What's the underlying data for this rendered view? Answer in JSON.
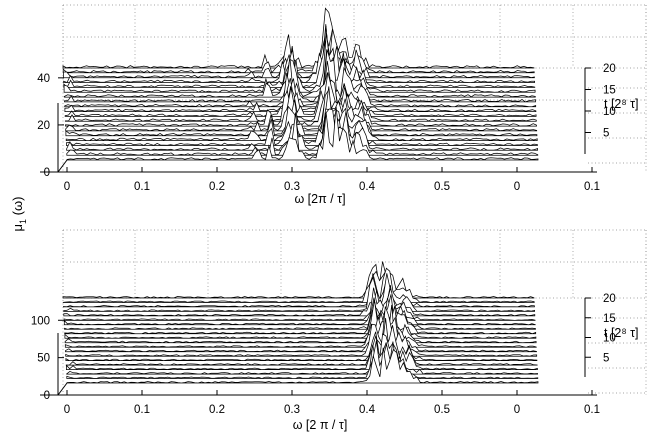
{
  "shared_ylabel": "μ1 (ω)",
  "shared_ylabel_base": "μ",
  "shared_ylabel_sub": "1",
  "shared_ylabel_arg": " (ω)",
  "chart_data": [
    {
      "type": "waterfall",
      "title": "",
      "xlabel": "ω [2π / τ]",
      "x_ticks": [
        "0",
        "0.1",
        "0.2",
        "0.3",
        "0.4",
        "0.5",
        "0",
        "0.1"
      ],
      "z_ticks": [
        "0",
        "20",
        "40"
      ],
      "t_label": "t [2⁸ τ]",
      "t_ticks": [
        "5",
        "10",
        "15",
        "20"
      ],
      "xlim": [
        0,
        0.5
      ],
      "zlim": [
        0,
        50
      ],
      "tlim": [
        0,
        20
      ],
      "grid": true,
      "series_count": 20,
      "peak_centers": [
        0.3,
        0.35,
        0.37,
        0.39
      ],
      "peak_heights": [
        35,
        48,
        30,
        20
      ],
      "peak_widths": [
        0.008,
        0.01,
        0.008,
        0.01
      ],
      "noise": 2,
      "spike_positions": [
        0.27,
        0.25
      ],
      "spike_heights": [
        14,
        8
      ]
    },
    {
      "type": "waterfall",
      "title": "",
      "xlabel": "ω [2 π / τ]",
      "x_ticks": [
        "0",
        "0.1",
        "0.2",
        "0.3",
        "0.4",
        "0.5",
        "0",
        "0.1"
      ],
      "z_ticks": [
        "0",
        "50",
        "100"
      ],
      "t_label": "t [2⁸ τ]",
      "t_ticks": [
        "5",
        "10",
        "15",
        "20"
      ],
      "xlim": [
        0,
        0.5
      ],
      "zlim": [
        0,
        150
      ],
      "tlim": [
        0,
        20
      ],
      "grid": true,
      "series_count": 20,
      "peak_centers": [
        0.41,
        0.43,
        0.45
      ],
      "peak_heights": [
        70,
        90,
        40
      ],
      "peak_widths": [
        0.006,
        0.008,
        0.01
      ],
      "noise": 3,
      "spike_positions": [
        0.42
      ],
      "spike_heights": [
        30
      ]
    }
  ]
}
